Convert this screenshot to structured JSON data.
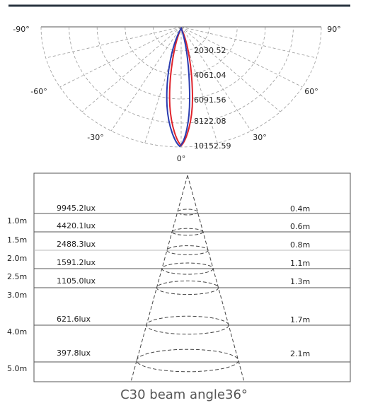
{
  "polar": {
    "angle_labels": [
      "-90°",
      "90°",
      "-60°",
      "60°",
      "-30°",
      "30°",
      "0°"
    ],
    "radial_labels": [
      "2030.52",
      "4061.04",
      "6091.56",
      "8122.08",
      "10152.59"
    ]
  },
  "table": {
    "rows": [
      {
        "distance": "1.0m",
        "illuminance": "9945.2lux",
        "diameter": "0.4m"
      },
      {
        "distance": "1.5m",
        "illuminance": "4420.1lux",
        "diameter": "0.6m"
      },
      {
        "distance": "2.0m",
        "illuminance": "2488.3lux",
        "diameter": "0.8m"
      },
      {
        "distance": "2.5m",
        "illuminance": "1591.2lux",
        "diameter": "1.1m"
      },
      {
        "distance": "3.0m",
        "illuminance": "1105.0lux",
        "diameter": "1.3m"
      },
      {
        "distance": "4.0m",
        "illuminance": "621.6lux",
        "diameter": "1.7m"
      },
      {
        "distance": "5.0m",
        "illuminance": "397.8lux",
        "diameter": "2.1m"
      }
    ]
  },
  "caption": "C30 beam angle36°"
}
